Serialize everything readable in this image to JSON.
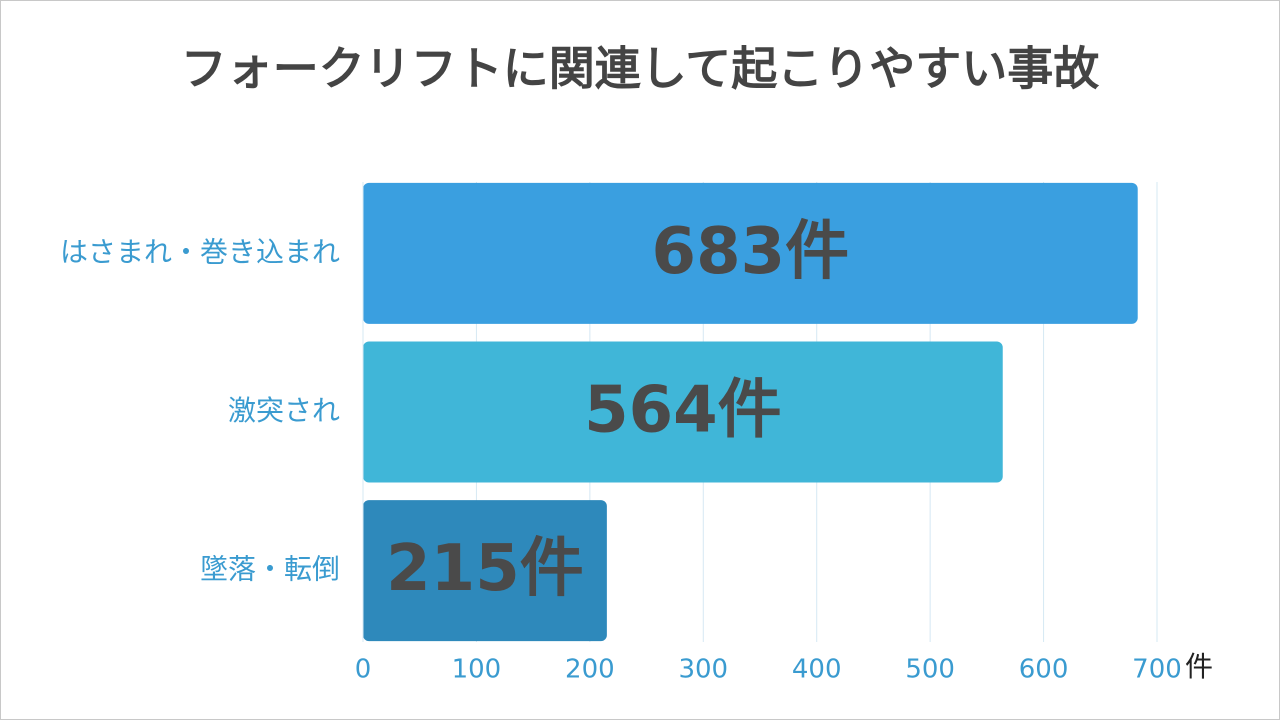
{
  "chart_data": {
    "type": "bar",
    "orientation": "horizontal",
    "title": "フォークリフトに関連して起こりやすい事故",
    "categories": [
      "はさまれ・巻き込まれ",
      "激突され",
      "墜落・転倒"
    ],
    "values": [
      683,
      564,
      215
    ],
    "value_labels": [
      "683件",
      "564件",
      "215件"
    ],
    "colors": [
      "#3a9fe0",
      "#40b6d8",
      "#2e89bb"
    ],
    "xlim": [
      0,
      700
    ],
    "xticks": [
      0,
      100,
      200,
      300,
      400,
      500,
      600,
      700
    ],
    "x_unit": "件",
    "grid": true
  }
}
